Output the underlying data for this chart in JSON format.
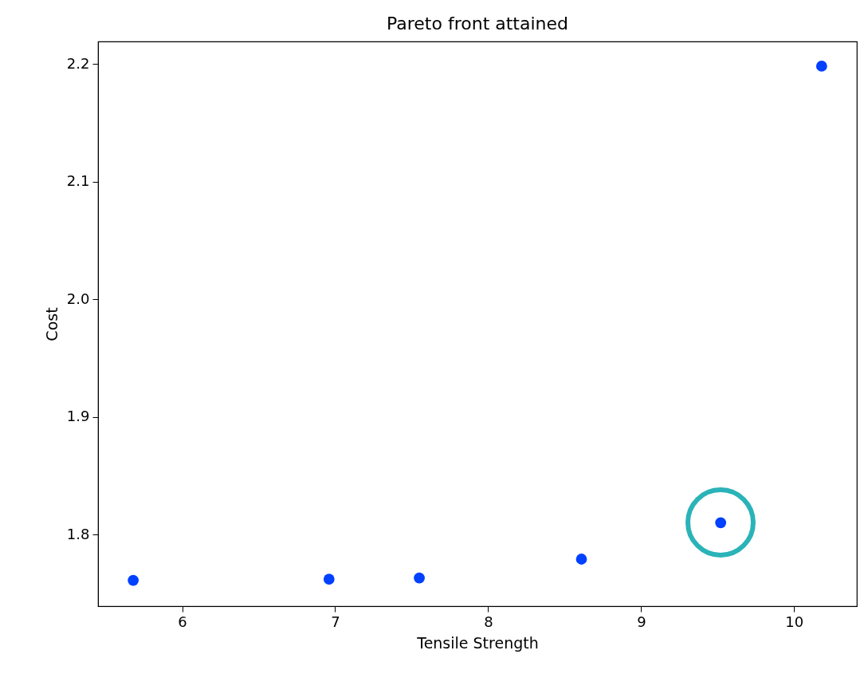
{
  "chart_data": {
    "type": "scatter",
    "title": "Pareto front attained",
    "xlabel": "Tensile Strength",
    "ylabel": "Cost",
    "x": [
      5.68,
      6.96,
      7.55,
      8.61,
      9.52,
      10.18
    ],
    "series": [
      {
        "color": "#0040ff",
        "values": [
          1.761,
          1.762,
          1.763,
          1.779,
          1.81,
          2.198
        ]
      }
    ],
    "xlim": [
      5.45,
      10.41
    ],
    "ylim": [
      1.739,
      2.219
    ],
    "xticks": [
      6,
      7,
      8,
      9,
      10
    ],
    "yticks": [
      1.8,
      1.9,
      {
        "value": 2,
        "label": "2.0"
      },
      2.1,
      2.2
    ],
    "grid": false
  }
}
